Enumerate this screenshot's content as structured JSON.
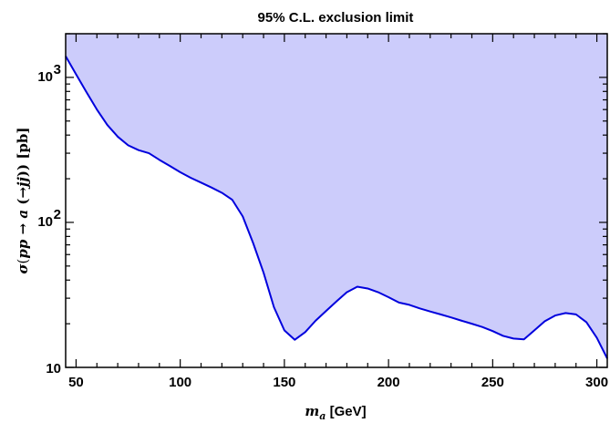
{
  "chart_data": {
    "type": "area",
    "title": "95% C.L. exclusion limit",
    "xlabel": {
      "var": "m",
      "sub": "a",
      "unit": " [GeV]"
    },
    "ylabel": {
      "sigma": "σ",
      "pp": "pp",
      "arrow": " → ",
      "a": "a",
      "inner": " (→",
      "jj": "jj",
      "close": ")) [pb]"
    },
    "x_scale": "linear",
    "y_scale": "log",
    "xlim": [
      45,
      305
    ],
    "ylim": [
      10,
      2000
    ],
    "x_ticks": [
      50,
      100,
      150,
      200,
      250,
      300
    ],
    "y_ticks": [
      {
        "value": 10,
        "base": "10",
        "exp": ""
      },
      {
        "value": 100,
        "base": "10",
        "exp": "2"
      },
      {
        "value": 1000,
        "base": "10",
        "exp": "3"
      }
    ],
    "grid": false,
    "colors": {
      "line": "#0000dd",
      "fill": "#ccccfb",
      "frame": "#000000"
    },
    "series": [
      {
        "fill_to": "top",
        "x": [
          45,
          50,
          55,
          60,
          65,
          70,
          75,
          80,
          85,
          90,
          95,
          100,
          105,
          110,
          115,
          120,
          125,
          130,
          135,
          140,
          145,
          150,
          155,
          160,
          165,
          170,
          175,
          180,
          185,
          190,
          195,
          200,
          205,
          210,
          215,
          220,
          225,
          230,
          235,
          240,
          245,
          250,
          255,
          260,
          265,
          270,
          275,
          280,
          285,
          290,
          295,
          300,
          305
        ],
        "y": [
          1400,
          1050,
          790,
          600,
          470,
          390,
          340,
          315,
          300,
          270,
          245,
          222,
          203,
          188,
          174,
          160,
          143,
          110,
          72,
          45,
          26,
          18,
          15.5,
          17.5,
          21,
          24.5,
          28.5,
          33,
          36,
          35,
          33,
          30.5,
          28,
          27,
          25.5,
          24.3,
          23.2,
          22.1,
          21,
          20,
          19,
          17.8,
          16.5,
          15.8,
          15.6,
          18,
          20.8,
          22.8,
          23.7,
          23.2,
          20.5,
          16,
          11.5
        ]
      }
    ]
  }
}
